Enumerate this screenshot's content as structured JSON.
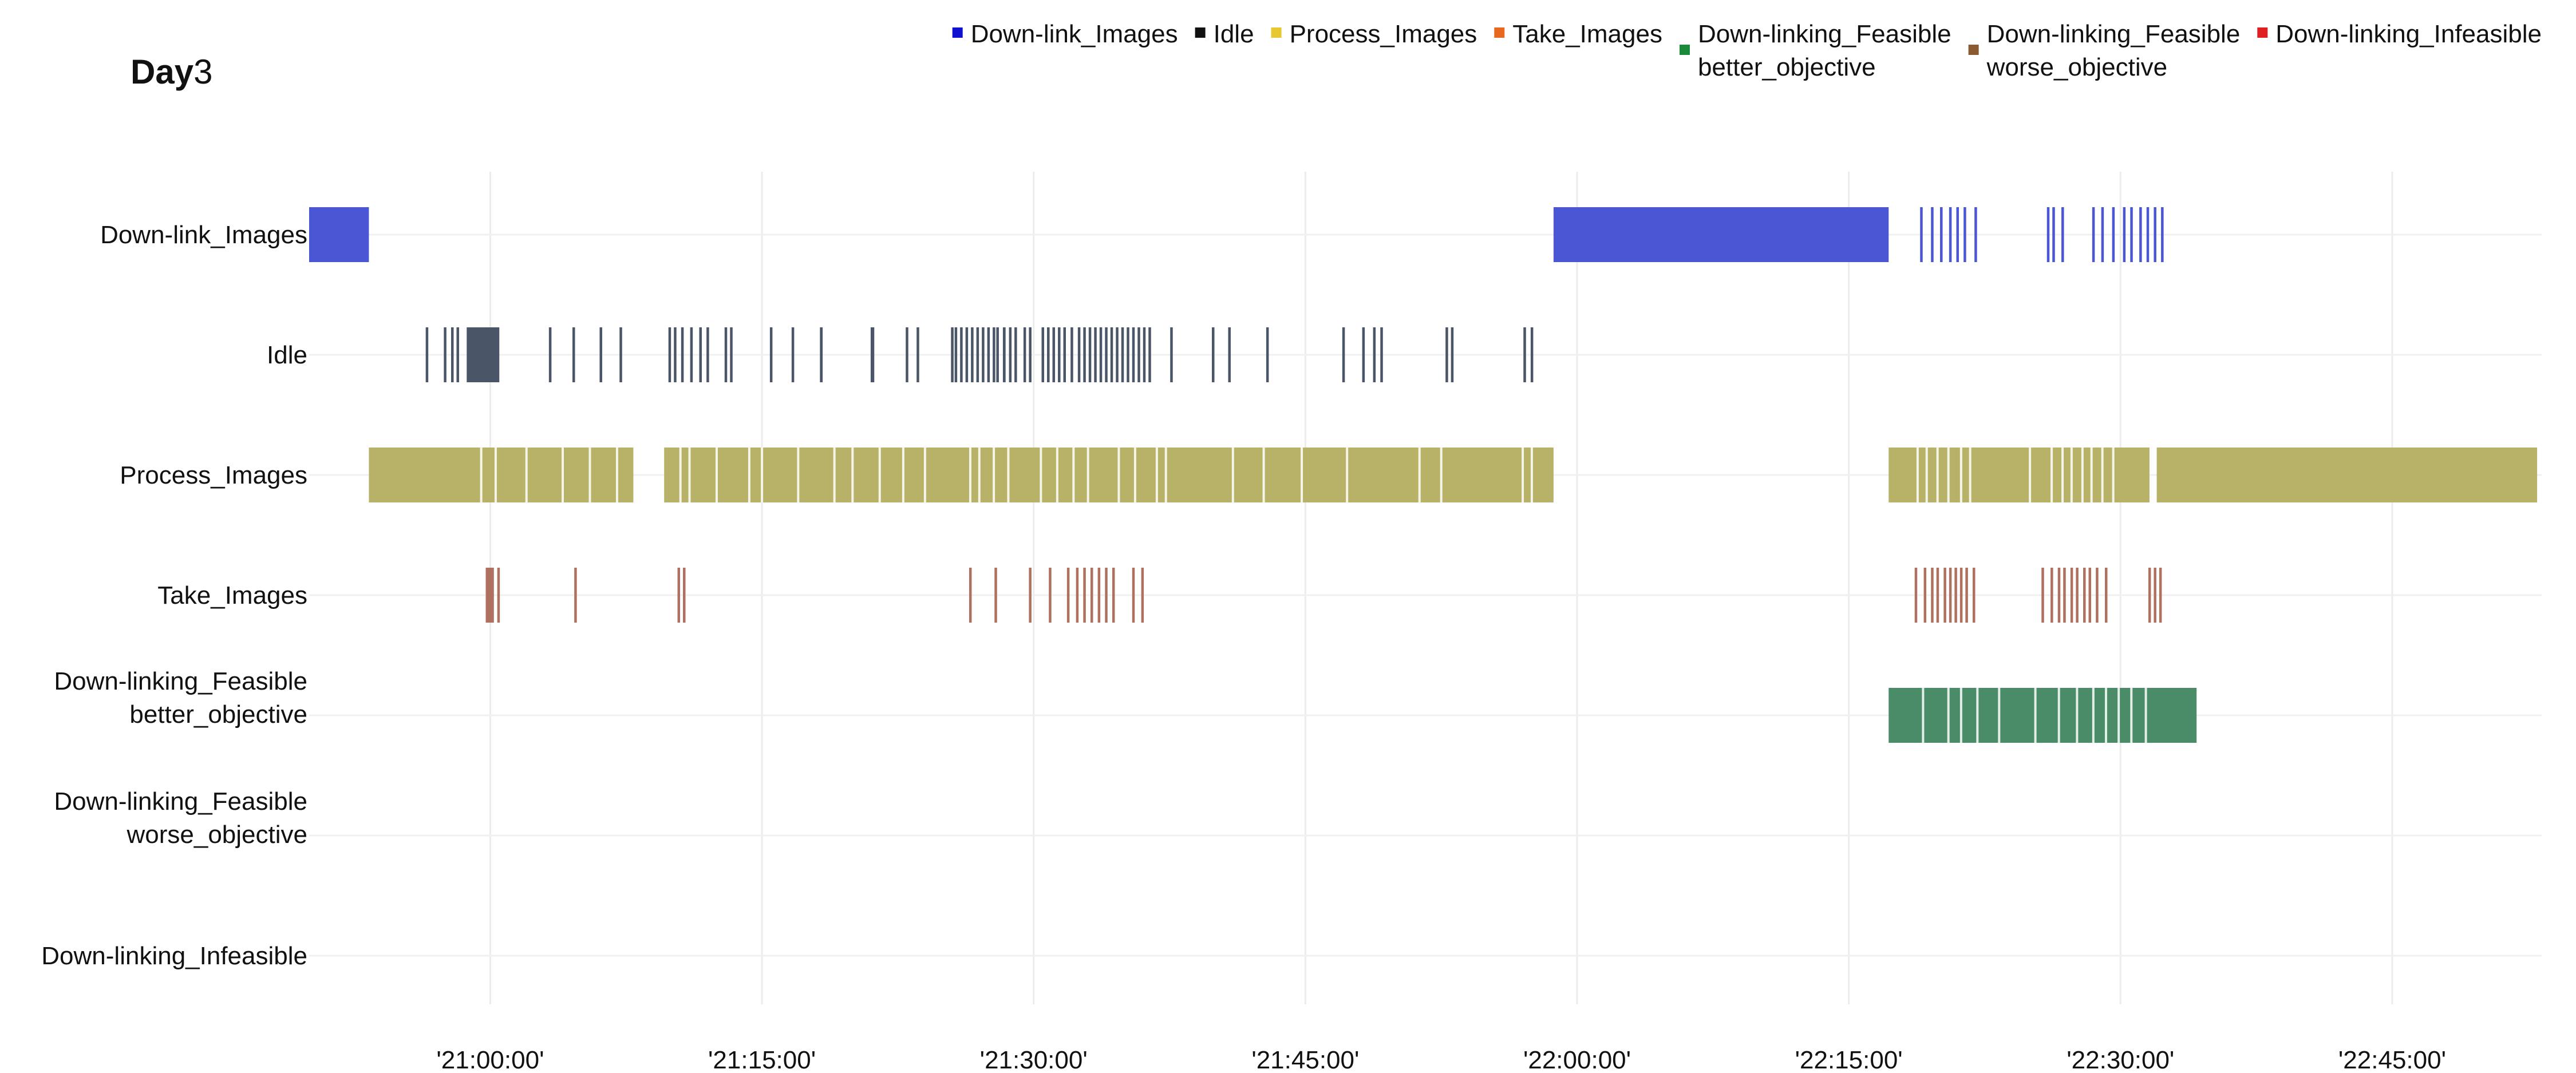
{
  "chart_data": {
    "type": "gantt",
    "title_bold": "Day",
    "title_rest": "3",
    "x_axis": {
      "ticks": [
        "'21:00:00'",
        "'21:15:00'",
        "'21:30:00'",
        "'21:45:00'",
        "'22:00:00'",
        "'22:15:00'",
        "'22:30:00'",
        "'22:45:00'"
      ],
      "tick_minutes": [
        0,
        15,
        30,
        45,
        60,
        75,
        90,
        105
      ],
      "range_minutes": [
        -10,
        113.25
      ]
    },
    "grid": true,
    "legend_placement": "top-right",
    "legend": [
      {
        "lines": [
          "Down-link_Images"
        ],
        "color": "#1010d0"
      },
      {
        "lines": [
          "Idle"
        ],
        "color": "#111111"
      },
      {
        "lines": [
          "Process_Images"
        ],
        "color": "#e8c830"
      },
      {
        "lines": [
          "Take_Images"
        ],
        "color": "#e86820"
      },
      {
        "lines": [
          "Down-linking_Feasible",
          "better_objective"
        ],
        "color": "#1a8a3a"
      },
      {
        "lines": [
          "Down-linking_Feasible",
          "worse_objective"
        ],
        "color": "#8b5a30"
      },
      {
        "lines": [
          "Down-linking_Infeasible"
        ],
        "color": "#e02020"
      }
    ],
    "rows": [
      {
        "lines": [
          "Down-link_Images"
        ],
        "color": "#4a56d4",
        "intervals": [
          [
            -10,
            -6.7
          ],
          [
            58.7,
            77.2
          ]
        ],
        "lines_at": [
          79.0,
          79.6,
          80.1,
          80.6,
          81.0,
          81.4,
          82.0,
          86.0,
          86.3,
          86.8,
          88.5,
          89.0,
          89.6,
          90.2,
          90.6,
          91.1,
          91.5,
          91.9,
          92.3
        ]
      },
      {
        "lines": [
          "Idle"
        ],
        "color": "#4a5568",
        "intervals": [
          [
            -1.3,
            0.5
          ],
          [
            18.2,
            18.35
          ],
          [
            21.0,
            21.2
          ],
          [
            28.3,
            28.45
          ]
        ],
        "lines_at": [
          -3.5,
          -2.5,
          -2.1,
          -1.8,
          0.4,
          3.3,
          4.6,
          6.1,
          7.2,
          9.9,
          10.2,
          10.6,
          11.1,
          11.6,
          12.0,
          13.0,
          13.3,
          15.5,
          16.7,
          23.0,
          23.6,
          25.5,
          25.7,
          26.0,
          26.3,
          26.6,
          26.9,
          27.2,
          27.5,
          27.8,
          28.0,
          28.7,
          29.0,
          29.5,
          29.8,
          30.5,
          30.8,
          31.1,
          31.4,
          31.7,
          32.1,
          32.5,
          32.8,
          33.1,
          33.4,
          33.7,
          34.0,
          34.3,
          34.6,
          34.9,
          35.2,
          35.5,
          35.8,
          36.1,
          36.4,
          37.6,
          39.9,
          40.8,
          42.9,
          47.1,
          48.2,
          48.8,
          49.2,
          52.8,
          53.1,
          57.1,
          57.5
        ]
      },
      {
        "lines": [
          "Process_Images"
        ],
        "color": "#b8b268",
        "intervals": [
          [
            -6.7,
            7.9
          ],
          [
            9.6,
            58.7
          ],
          [
            77.2,
            91.6
          ],
          [
            92.0,
            113.0
          ]
        ],
        "gaps_at": [
          -0.5,
          0.3,
          2.0,
          4.0,
          5.5,
          7.0,
          10.5,
          11.0,
          12.5,
          14.3,
          15.0,
          17.0,
          19.0,
          20.0,
          21.5,
          22.8,
          24.0,
          26.5,
          27.0,
          27.8,
          28.6,
          30.4,
          31.3,
          32.2,
          33.0,
          34.7,
          35.6,
          36.8,
          37.3,
          41.0,
          42.7,
          44.8,
          47.3,
          51.3,
          52.5,
          57.0,
          57.5,
          78.8,
          79.3,
          79.9,
          80.5,
          81.2,
          81.7,
          85.0,
          86.2,
          86.8,
          87.3,
          87.9,
          88.4,
          89.0,
          89.6
        ]
      },
      {
        "lines": [
          "Take_Images"
        ],
        "color": "#b07060",
        "intervals": [
          [
            -0.25,
            0.2
          ]
        ],
        "lines_at": [
          0.45,
          4.7,
          10.4,
          10.7,
          26.5,
          27.9,
          29.8,
          30.9,
          31.9,
          32.4,
          32.8,
          33.2,
          33.6,
          34.0,
          34.4,
          35.5,
          36.0,
          78.7,
          79.2,
          79.6,
          79.9,
          80.3,
          80.6,
          80.9,
          81.2,
          81.5,
          81.9,
          85.7,
          86.2,
          86.6,
          86.9,
          87.3,
          87.6,
          88.0,
          88.3,
          88.7,
          89.2,
          91.6,
          91.9,
          92.2
        ]
      },
      {
        "lines": [
          "Down-linking_Feasible",
          "better_objective"
        ],
        "color": "#4a8c68",
        "intervals": [
          [
            77.2,
            94.2
          ]
        ],
        "gaps_at": [
          79.1,
          80.5,
          81.2,
          82.1,
          83.3,
          85.3,
          86.6,
          87.6,
          88.5,
          89.2,
          89.9,
          90.6,
          91.4
        ]
      },
      {
        "lines": [
          "Down-linking_Feasible",
          "worse_objective"
        ],
        "color": "#8b5a30",
        "intervals": []
      },
      {
        "lines": [
          "Down-linking_Infeasible"
        ],
        "color": "#e02020",
        "intervals": []
      }
    ]
  }
}
